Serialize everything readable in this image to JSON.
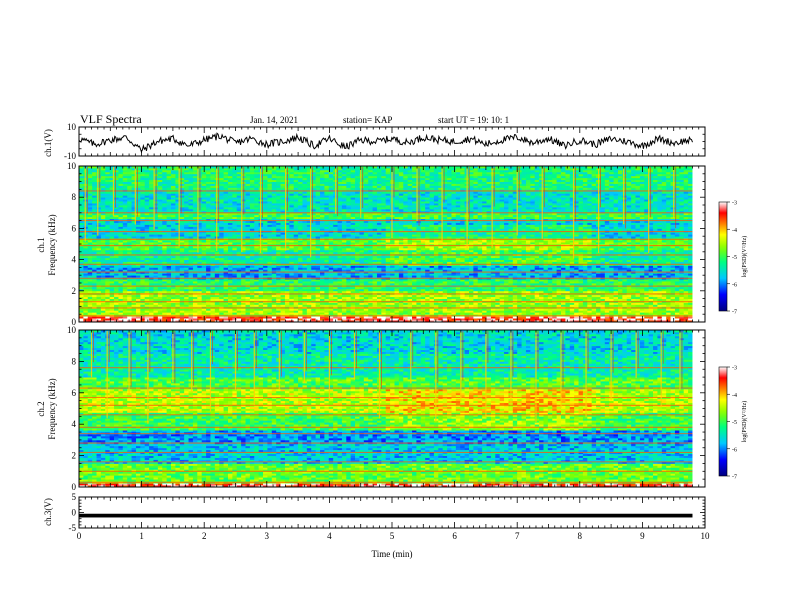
{
  "header": {
    "title": "VLF Spectra",
    "date": "Jan. 14, 2021",
    "station": "station= KAP",
    "start_ut": "start  UT =   19: 10: 1"
  },
  "colors": {
    "waveform": "#000000",
    "colormap": [
      "#000080",
      "#0000ff",
      "#00c8ff",
      "#00ff80",
      "#80ff00",
      "#ffff00",
      "#ff8000",
      "#ff0000",
      "#ffc8c8",
      "#ffffff"
    ]
  },
  "chart_data": [
    {
      "id": "ch1-waveform",
      "type": "line",
      "ylabel": "ch.1(V)",
      "ylim": [
        -10,
        10
      ],
      "yticks": [
        "10",
        "-10"
      ],
      "xlim": [
        0,
        10
      ],
      "series": [
        {
          "x": [
            0,
            0.25,
            0.5,
            0.75,
            1.0,
            1.25,
            1.5,
            1.75,
            2.0,
            2.25,
            2.5,
            2.75,
            3.0,
            3.25,
            3.5,
            3.75,
            4.0,
            4.25,
            4.5,
            4.75,
            5.0,
            5.25,
            5.5,
            5.75,
            6.0,
            6.25,
            6.5,
            6.75,
            7.0,
            7.25,
            7.5,
            7.75,
            8.0,
            8.25,
            8.5,
            8.75,
            9.0,
            9.25,
            9.5,
            9.75,
            9.8
          ],
          "values": [
            2,
            -2,
            1,
            3,
            -6,
            0,
            2,
            -3,
            1,
            4,
            -1,
            2,
            -2,
            0,
            3,
            -3,
            2,
            -4,
            1,
            0,
            2,
            -1,
            3,
            1,
            0,
            2,
            -2,
            1,
            3,
            -1,
            2,
            -3,
            1,
            -2,
            2,
            0,
            -3,
            2,
            -1,
            1,
            -2
          ]
        }
      ]
    },
    {
      "id": "ch1-spectrogram",
      "type": "heatmap",
      "ylabel": "ch.1\nFrequency  (kHz)",
      "ylim": [
        0,
        10
      ],
      "yticks": [
        "0",
        "2",
        "4",
        "6",
        "8",
        "10"
      ],
      "xlim": [
        0,
        10
      ],
      "colorbar": {
        "label": "log(PSD)(V²/Hz)",
        "range": [
          -7,
          -3
        ],
        "ticks": [
          "-3",
          "-4",
          "-5",
          "-6",
          "-7"
        ]
      },
      "background_bands": [
        {
          "from": 0,
          "to": 0.4,
          "level": -3.3
        },
        {
          "from": 0.4,
          "to": 2.0,
          "level": -4.6
        },
        {
          "from": 2.0,
          "to": 2.8,
          "level": -5.1
        },
        {
          "from": 2.8,
          "to": 3.6,
          "level": -5.8
        },
        {
          "from": 3.6,
          "to": 4.6,
          "level": -5.3
        },
        {
          "from": 4.6,
          "to": 5.4,
          "level": -4.9
        },
        {
          "from": 5.4,
          "to": 6.6,
          "level": -5.6
        },
        {
          "from": 6.6,
          "to": 7.0,
          "level": -5.0
        },
        {
          "from": 7.0,
          "to": 8.5,
          "level": -5.5
        },
        {
          "from": 8.5,
          "to": 10.0,
          "level": -5.2
        }
      ],
      "lines_khz": [
        0.4,
        0.9,
        1.3,
        1.8,
        2.3,
        2.8,
        3.2,
        3.7,
        4.3,
        4.9,
        5.3,
        5.8,
        6.5,
        7.0,
        8.4
      ],
      "spikes_min": [
        0.1,
        0.3,
        0.55,
        0.9,
        1.2,
        1.6,
        1.9,
        2.2,
        2.6,
        2.9,
        3.3,
        3.7,
        4.1,
        4.5,
        5.0,
        5.4,
        5.8,
        6.2,
        6.6,
        7.0,
        7.4,
        7.9,
        8.3,
        8.7,
        9.1,
        9.5
      ],
      "shift_min": 4.9
    },
    {
      "id": "ch2-spectrogram",
      "type": "heatmap",
      "ylabel": "ch.2\nFrequency  (kHz)",
      "ylim": [
        0,
        10
      ],
      "yticks": [
        "0",
        "2",
        "4",
        "6",
        "8",
        "10"
      ],
      "xlim": [
        0,
        10
      ],
      "colorbar": {
        "label": "log(PSD)(V²/Hz)",
        "range": [
          -7,
          -3
        ],
        "ticks": [
          "-3",
          "-4",
          "-5",
          "-6",
          "-7"
        ]
      },
      "background_bands": [
        {
          "from": 0,
          "to": 0.3,
          "level": -3.3
        },
        {
          "from": 0.3,
          "to": 1.5,
          "level": -4.8
        },
        {
          "from": 1.5,
          "to": 2.8,
          "level": -5.7
        },
        {
          "from": 2.8,
          "to": 3.6,
          "level": -5.9
        },
        {
          "from": 3.6,
          "to": 4.8,
          "level": -5.0
        },
        {
          "from": 4.8,
          "to": 6.2,
          "level": -4.5
        },
        {
          "from": 6.2,
          "to": 7.0,
          "level": -4.9
        },
        {
          "from": 7.0,
          "to": 8.5,
          "level": -5.4
        },
        {
          "from": 8.5,
          "to": 10.0,
          "level": -5.6
        }
      ],
      "lines_khz": [
        0.3,
        1.0,
        1.6,
        2.2,
        2.8,
        3.4,
        3.8,
        4.6,
        5.2,
        5.7,
        6.3,
        7.6
      ],
      "spikes_min": [
        0.2,
        0.45,
        0.8,
        1.1,
        1.5,
        1.8,
        2.1,
        2.5,
        2.8,
        3.2,
        3.6,
        4.0,
        4.4,
        4.8,
        5.3,
        5.7,
        6.1,
        6.5,
        6.9,
        7.3,
        7.7,
        8.1,
        8.5,
        8.9,
        9.3,
        9.6
      ],
      "shift_min": 4.9
    },
    {
      "id": "ch3-waveform",
      "type": "line",
      "ylabel": "ch.3(V)",
      "ylim": [
        -5,
        5
      ],
      "yticks": [
        "5",
        "0",
        "-5"
      ],
      "xlim": [
        0,
        10
      ],
      "xlabel": "Time  (min)",
      "xticks": [
        "0",
        "1",
        "2",
        "3",
        "4",
        "5",
        "6",
        "7",
        "8",
        "9",
        "10"
      ],
      "series": [
        {
          "x": [
            0,
            9.8
          ],
          "values": [
            -1,
            -1
          ],
          "band": [
            -1.6,
            -0.4
          ]
        }
      ]
    }
  ]
}
